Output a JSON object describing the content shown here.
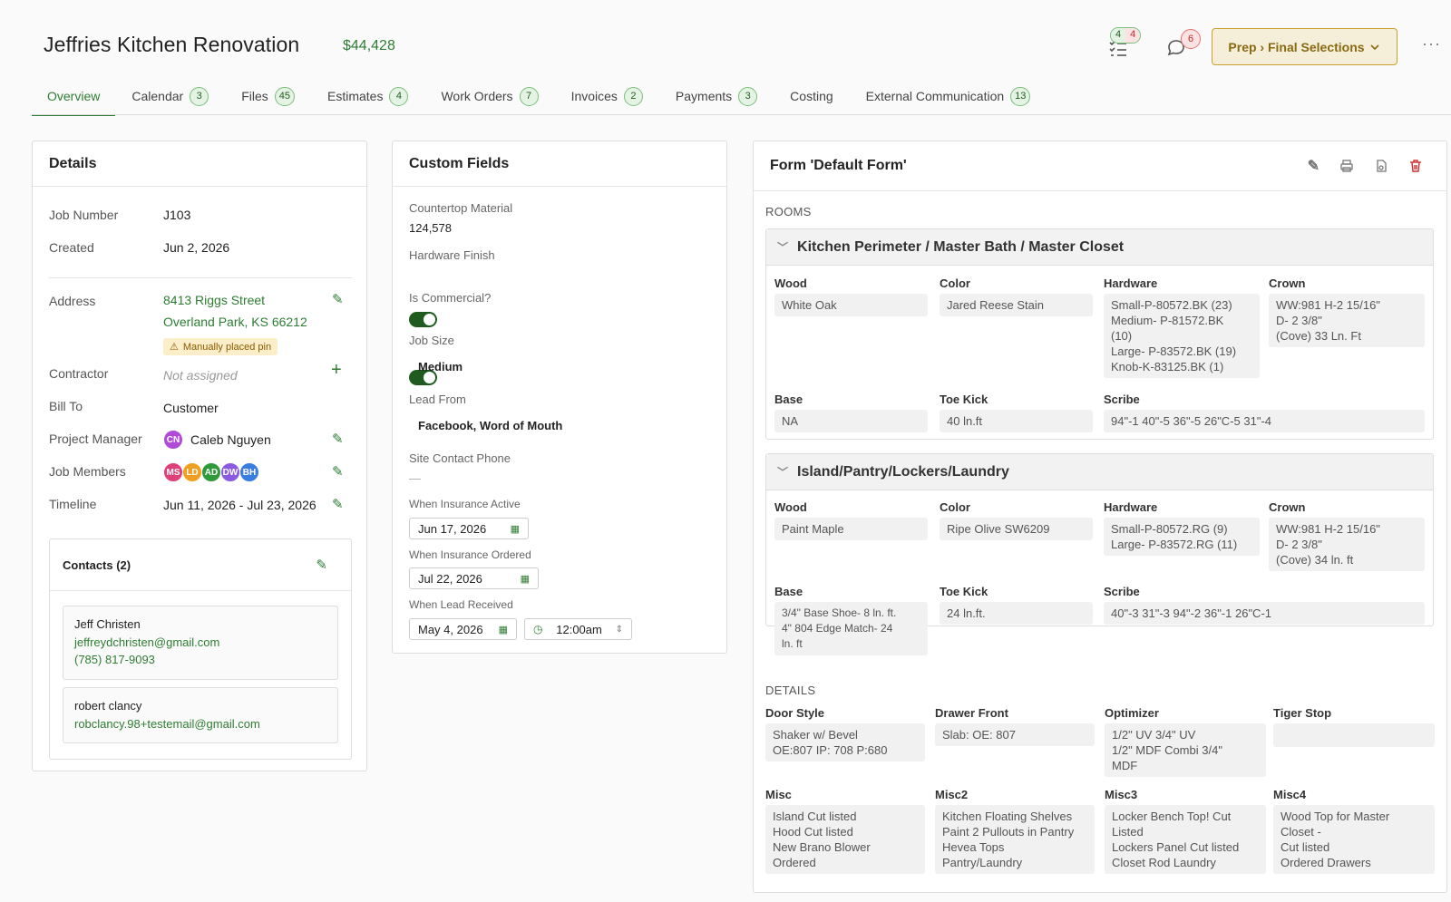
{
  "header": {
    "title": "Jeffries Kitchen Renovation",
    "amount": "$44,428",
    "tasks_done": "4",
    "tasks_open": "4",
    "messages_count": "6",
    "stage_label": "Prep › Final Selections"
  },
  "tabs": [
    {
      "label": "Overview",
      "count": ""
    },
    {
      "label": "Calendar",
      "count": "3"
    },
    {
      "label": "Files",
      "count": "45"
    },
    {
      "label": "Estimates",
      "count": "4"
    },
    {
      "label": "Work Orders",
      "count": "7"
    },
    {
      "label": "Invoices",
      "count": "2"
    },
    {
      "label": "Payments",
      "count": "3"
    },
    {
      "label": "Costing",
      "count": ""
    },
    {
      "label": "External Communication",
      "count": "13"
    }
  ],
  "details": {
    "title": "Details",
    "job_number_label": "Job Number",
    "job_number": "J103",
    "created_label": "Created",
    "created": "Jun 2, 2026",
    "address_label": "Address",
    "address_line1": "8413 Riggs Street",
    "address_line2": "Overland Park, KS 66212",
    "pin_note": "Manually placed pin",
    "contractor_label": "Contractor",
    "contractor": "Not assigned",
    "bill_to_label": "Bill To",
    "bill_to": "Customer",
    "pm_label": "Project Manager",
    "pm_initials": "CN",
    "pm_name": "Caleb Nguyen",
    "members_label": "Job Members",
    "members": [
      "MS",
      "LD",
      "AD",
      "DW",
      "BH"
    ],
    "timeline_label": "Timeline",
    "timeline": "Jun 11, 2026 - Jul 23, 2026",
    "contacts_title": "Contacts (2)",
    "contacts": [
      {
        "name": "Jeff Christen",
        "email": "jeffreydchristen@gmail.com",
        "phone": "(785) 817-9093"
      },
      {
        "name": "robert clancy",
        "email": "robclancy.98+testemail@gmail.com"
      }
    ]
  },
  "custom_fields": {
    "title": "Custom Fields",
    "countertop_label": "Countertop Material",
    "countertop": "124,578",
    "hardware_label": "Hardware Finish",
    "commercial_label": "Is Commercial?",
    "job_size_label": "Job Size",
    "job_size": "Medium",
    "lead_from_label": "Lead From",
    "lead_from": "Facebook, Word of Mouth",
    "phone_label": "Site Contact Phone",
    "phone": "—",
    "ins_active_label": "When Insurance Active",
    "ins_active": "Jun 17, 2026",
    "ins_ordered_label": "When Insurance Ordered",
    "ins_ordered": "Jul 22, 2026",
    "lead_received_label": "When Lead Received",
    "lead_received": "May 4, 2026",
    "lead_time": "12:00am"
  },
  "form": {
    "title": "Form 'Default Form'",
    "rooms_label": "ROOMS",
    "rooms": [
      {
        "name": "Kitchen Perimeter / Master Bath / Master Closet",
        "wood": "White Oak",
        "color": "Jared Reese Stain",
        "hardware": "Small-P-80572.BK (23)\nMedium- P-81572.BK\n(10)\nLarge- P-83572.BK (19)\nKnob-K-83125.BK (1)",
        "crown": "WW:981    H-2 15/16\"\nD- 2 3/8\"\n(Cove) 33 Ln. Ft",
        "base": "NA",
        "toe_kick": "40 ln.ft",
        "scribe": "94\"-1   40\"-5   36\"-5   26\"C-5   31\"-4"
      },
      {
        "name": "Island/Pantry/Lockers/Laundry",
        "wood": "Paint Maple",
        "color": "Ripe Olive SW6209",
        "hardware": "Small-P-80572.RG (9)\nLarge- P-83572.RG (11)",
        "crown": "WW:981    H-2 15/16\"\nD- 2 3/8\"\n(Cove) 34 ln. ft",
        "base": "3/4\" Base Shoe- 8 ln. ft.\n4\" 804 Edge Match- 24\nln. ft",
        "toe_kick": "24 ln.ft.",
        "scribe": "40\"-3   31\"-3   94\"-2   36\"-1   26\"C-1"
      }
    ],
    "field_labels": {
      "wood": "Wood",
      "color": "Color",
      "hardware": "Hardware",
      "crown": "Crown",
      "base": "Base",
      "toe_kick": "Toe Kick",
      "scribe": "Scribe"
    },
    "details_label": "DETAILS",
    "door_style_label": "Door Style",
    "door_style": "Shaker w/ Bevel\nOE:807   IP: 708   P:680",
    "drawer_front_label": "Drawer Front",
    "drawer_front": "Slab: OE: 807",
    "optimizer_label": "Optimizer",
    "optimizer": "1/2\" UV   3/4\" UV\n1/2\" MDF Combi   3/4\"\nMDF",
    "tiger_stop_label": "Tiger Stop",
    "tiger_stop": "",
    "misc_label": "Misc",
    "misc": "Island Cut listed\nHood Cut listed\nNew Brano Blower\nOrdered",
    "misc2_label": "Misc2",
    "misc2": "Kitchen Floating Shelves\nPaint 2 Pullouts in Pantry\nHevea Tops\nPantry/Laundry",
    "misc3_label": "Misc3",
    "misc3": "Locker Bench Top! Cut\nListed\nLockers Panel Cut listed\nCloset Rod Laundry",
    "misc4_label": "Misc4",
    "misc4": "Wood Top for Master\nCloset -\nCut listed\nOrdered Drawers"
  },
  "colors": {
    "accent": "#2e7d32",
    "stage_bg": "#f5efd9",
    "stage_border": "#c8a12b",
    "delete": "#d32f2f"
  }
}
